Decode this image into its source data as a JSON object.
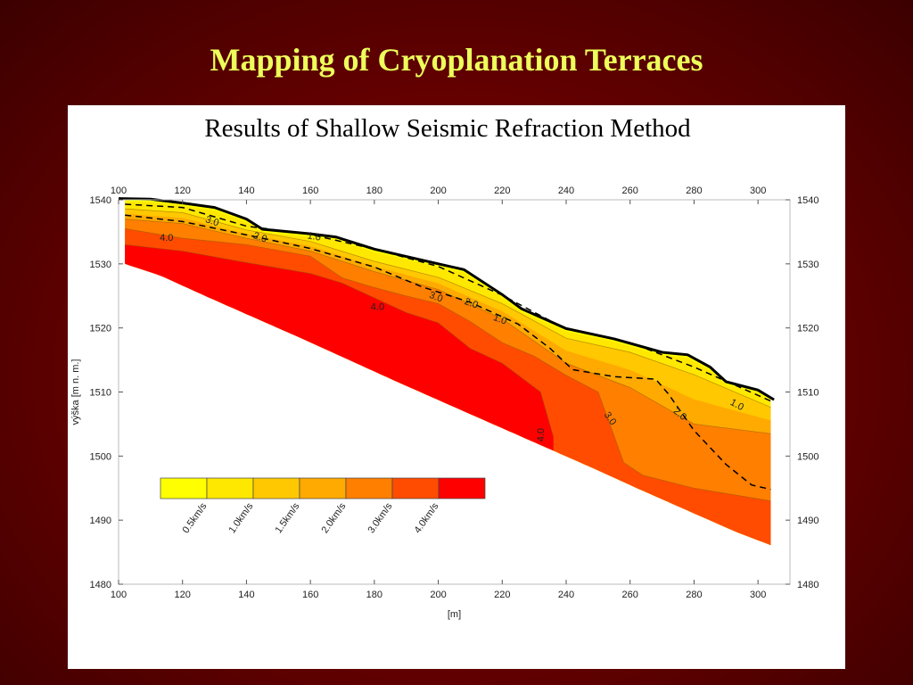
{
  "slide": {
    "title": "Mapping of Cryoplanation Terraces"
  },
  "chart_data": {
    "type": "heatmap",
    "title": "Results of Shallow Seismic Refraction Method",
    "xlabel": "[m]",
    "ylabel": "výška [m n. m.]",
    "xlim": [
      100,
      305
    ],
    "ylim": [
      1480,
      1542
    ],
    "x_ticks": [
      "100",
      "120",
      "140",
      "160",
      "180",
      "200",
      "220",
      "240",
      "260",
      "280",
      "300"
    ],
    "y_ticks": [
      "1480",
      "1490",
      "1500",
      "1510",
      "1520",
      "1530",
      "1540"
    ],
    "grid": false,
    "legend": {
      "position": "bottom-left",
      "labels": [
        "0.5km/s",
        "1.0km/s",
        "1.5km/s",
        "2.0km/s",
        "3.0km/s",
        "4.0km/s"
      ],
      "colors": [
        "#ffff00",
        "#ffe800",
        "#ffc800",
        "#ffaa00",
        "#ff7f00",
        "#ff4c00",
        "#ff0000"
      ]
    },
    "velocity_classes": [
      {
        "min_kms": 0.0,
        "max_kms": 0.5,
        "color": "#ffff00"
      },
      {
        "min_kms": 0.5,
        "max_kms": 1.0,
        "color": "#ffe800"
      },
      {
        "min_kms": 1.0,
        "max_kms": 1.5,
        "color": "#ffc800"
      },
      {
        "min_kms": 1.5,
        "max_kms": 2.0,
        "color": "#ffaa00"
      },
      {
        "min_kms": 2.0,
        "max_kms": 3.0,
        "color": "#ff7f00"
      },
      {
        "min_kms": 3.0,
        "max_kms": 4.0,
        "color": "#ff4c00"
      },
      {
        "min_kms": 4.0,
        "max_kms": 5.0,
        "color": "#ff0000"
      }
    ],
    "surface": {
      "x": [
        100,
        110,
        120,
        130,
        140,
        145,
        160,
        168,
        180,
        200,
        208,
        220,
        226,
        240,
        255,
        270,
        278,
        285,
        290,
        300,
        305
      ],
      "y": [
        1540.2,
        1540.1,
        1539.5,
        1538.8,
        1537.0,
        1535.4,
        1534.7,
        1534.2,
        1532.3,
        1530.0,
        1529.1,
        1525.2,
        1523.0,
        1519.9,
        1518.3,
        1516.2,
        1515.8,
        1513.9,
        1511.6,
        1510.3,
        1508.8
      ]
    },
    "model_bottom": {
      "x": [
        102,
        113,
        128,
        143,
        158,
        173,
        188,
        203,
        218,
        233,
        248,
        263,
        278,
        293,
        304
      ],
      "y": [
        1530,
        1528.2,
        1524.8,
        1521.5,
        1518.2,
        1514.8,
        1511.4,
        1508.1,
        1504.8,
        1501.5,
        1498.2,
        1494.8,
        1491.5,
        1488.2,
        1486.1
      ]
    },
    "interfaces": [
      {
        "kms": 1.0,
        "x": [
          102,
          120,
          140,
          160,
          180,
          200,
          220,
          240,
          260,
          280,
          304
        ],
        "y": [
          1538.6,
          1538.0,
          1535.3,
          1533.5,
          1530.4,
          1527.9,
          1523.8,
          1518.4,
          1516.2,
          1512.7,
          1507.6
        ]
      },
      {
        "kms": 2.0,
        "x": [
          102,
          120,
          140,
          160,
          180,
          200,
          220,
          240,
          260,
          280,
          304
        ],
        "y": [
          1537.0,
          1536.3,
          1534.0,
          1532.0,
          1528.8,
          1526.0,
          1521.4,
          1514.5,
          1510.7,
          1505.0,
          1503.5
        ]
      },
      {
        "kms": 3.0,
        "x": [
          102,
          120,
          140,
          160,
          170,
          180,
          190,
          200,
          210,
          220,
          230,
          240,
          250,
          258,
          264,
          280,
          304
        ],
        "y": [
          1535.5,
          1534.0,
          1533.0,
          1531.2,
          1527.8,
          1526.3,
          1525.0,
          1523.8,
          1521.0,
          1517.7,
          1515.6,
          1512.6,
          1510.0,
          1499.0,
          1497.0,
          1495.0,
          1493.0
        ]
      },
      {
        "kms": 4.0,
        "x": [
          102,
          120,
          140,
          160,
          170,
          180,
          190,
          200,
          210,
          220,
          232,
          236
        ],
        "y": [
          1533.0,
          1532.0,
          1530.2,
          1528.5,
          1527.0,
          1524.7,
          1522.4,
          1520.8,
          1516.8,
          1514.5,
          1510.0,
          1503.0
        ]
      }
    ],
    "dashed_lines": [
      {
        "name": "",
        "x": [
          102,
          120,
          140,
          160,
          180,
          200,
          220,
          240,
          260,
          280,
          304
        ],
        "y": [
          1539.3,
          1538.8,
          1535.9,
          1534.6,
          1532.3,
          1529.6,
          1525.1,
          1519.8,
          1517.7,
          1513.9,
          1508.6
        ]
      },
      {
        "name": "",
        "x": [
          102,
          120,
          145,
          160,
          180,
          195,
          210,
          225,
          235,
          242,
          255,
          268,
          272,
          280,
          290,
          298,
          304
        ],
        "y": [
          1537.6,
          1536.6,
          1534.0,
          1532.4,
          1529.5,
          1526.4,
          1524.0,
          1520.6,
          1516.8,
          1513.5,
          1512.4,
          1512.0,
          1509.7,
          1504.0,
          1498.7,
          1495.5,
          1494.8
        ]
      }
    ],
    "annotations": [
      {
        "text": "4.0",
        "x": 115,
        "y": 1533.6,
        "rotate": 0
      },
      {
        "text": "3.0",
        "x": 129,
        "y": 1536.2,
        "rotate": 18
      },
      {
        "text": "2.0",
        "x": 144,
        "y": 1533.7,
        "rotate": 18
      },
      {
        "text": "1.0",
        "x": 161,
        "y": 1533.8,
        "rotate": 10
      },
      {
        "text": "4.0",
        "x": 181,
        "y": 1522.8,
        "rotate": 0
      },
      {
        "text": "3.0",
        "x": 199,
        "y": 1524.4,
        "rotate": 20
      },
      {
        "text": "2.0",
        "x": 210,
        "y": 1523.4,
        "rotate": 20
      },
      {
        "text": "1.0",
        "x": 219,
        "y": 1520.9,
        "rotate": 20
      },
      {
        "text": "4.0",
        "x": 233,
        "y": 1503.3,
        "rotate": -90
      },
      {
        "text": "3.0",
        "x": 253,
        "y": 1505.6,
        "rotate": 55
      },
      {
        "text": "2.0",
        "x": 275,
        "y": 1506.2,
        "rotate": 40
      },
      {
        "text": "1.0",
        "x": 293,
        "y": 1507.6,
        "rotate": 28
      }
    ]
  }
}
